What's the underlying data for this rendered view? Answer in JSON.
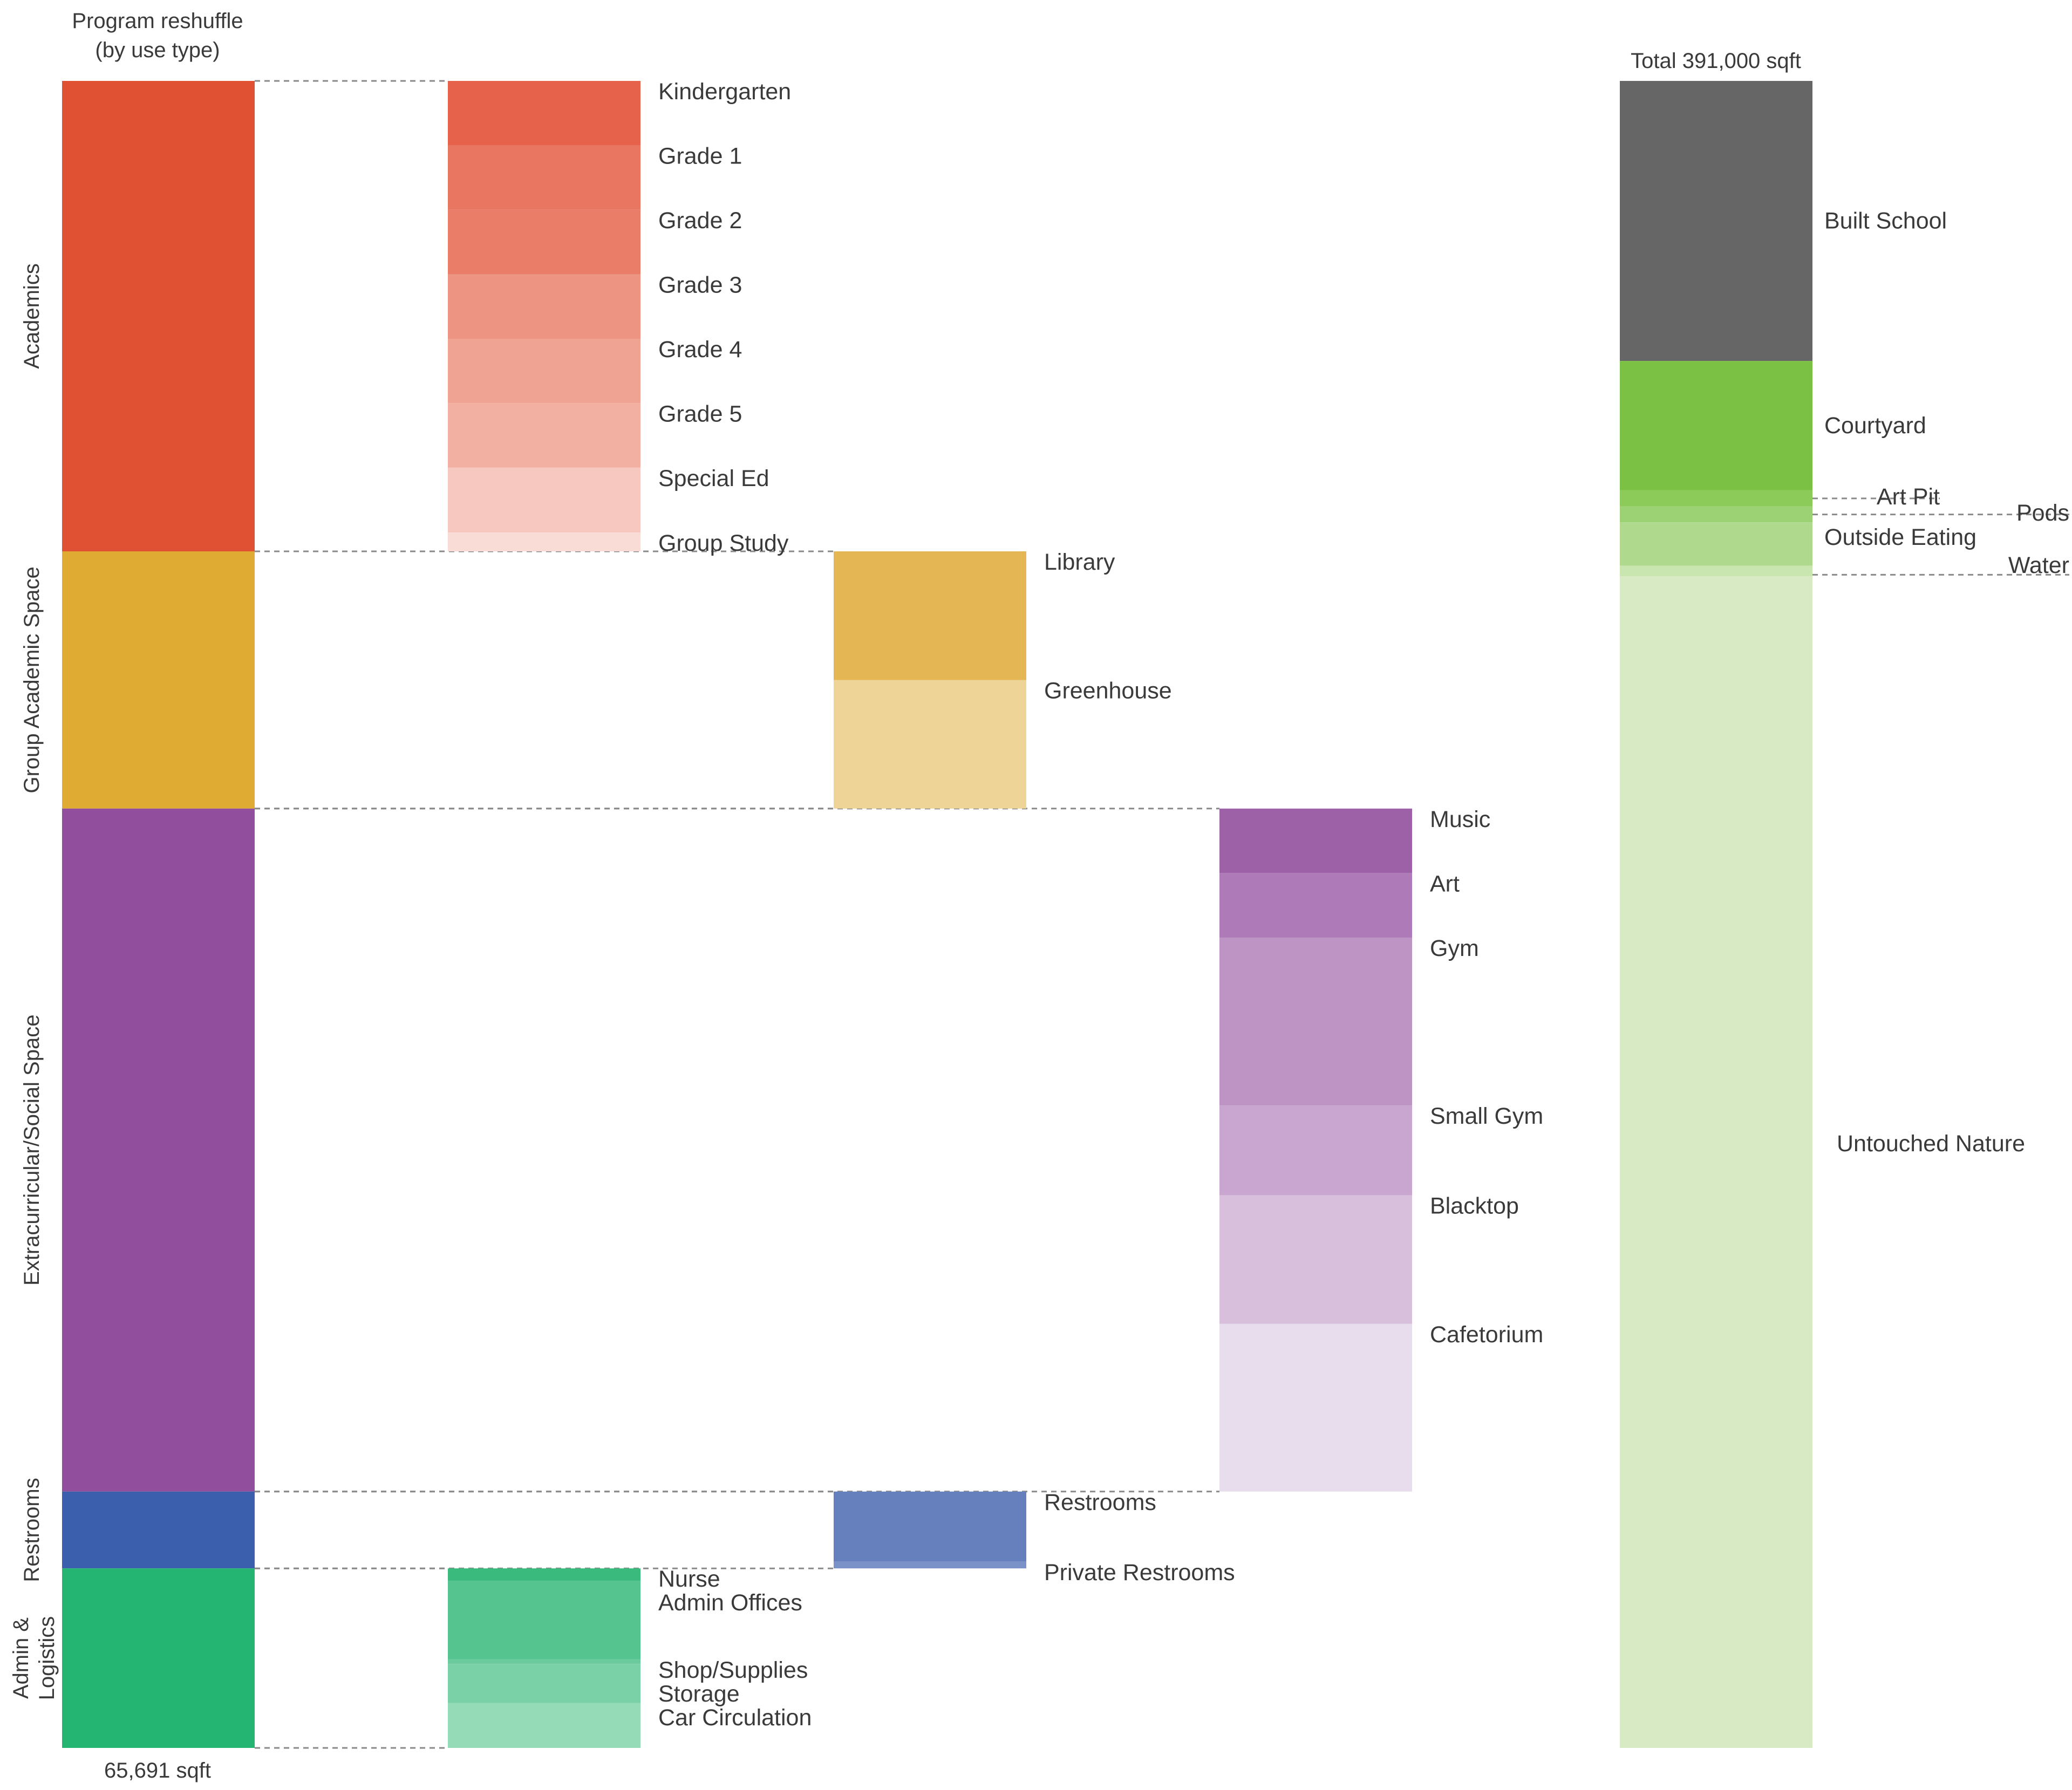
{
  "chart_data": {
    "type": "bar",
    "title": "Program reshuffle",
    "subtitle": "(by use type)",
    "program_total_label": "65,691 sqft",
    "site_total_label": "Total 391,000 sqft",
    "program_groups": [
      {
        "name": "Academics",
        "label_lines": [
          "Academics"
        ],
        "color": "#e05033",
        "start": 0,
        "end": 0.2822
      },
      {
        "name": "Group Academic Space",
        "label_lines": [
          "Group Academic Space"
        ],
        "color": "#e0ab32",
        "start": 0.2822,
        "end": 0.4365
      },
      {
        "name": "Extracurricular/Social Space",
        "label_lines": [
          "Extracurricular/Social Space"
        ],
        "color": "#914e9c",
        "start": 0.4365,
        "end": 0.8462
      },
      {
        "name": "Restrooms",
        "label_lines": [
          "Restrooms"
        ],
        "color": "#3c5fad",
        "start": 0.8462,
        "end": 0.8923
      },
      {
        "name": "Admin & Logistics",
        "label_lines": [
          "Admin &",
          "Logistics"
        ],
        "color": "#25b572",
        "start": 0.8923,
        "end": 1.0
      }
    ],
    "breakdowns": [
      {
        "group": "Academics",
        "column": 1,
        "items": [
          {
            "label": "Kindergarten",
            "start": 0.0,
            "end": 0.0387,
            "color": "#e6624a"
          },
          {
            "label": "Grade 1",
            "start": 0.0387,
            "end": 0.0773,
            "color": "#e97660"
          },
          {
            "label": "Grade 2",
            "start": 0.0773,
            "end": 0.116,
            "color": "#ea7d68"
          },
          {
            "label": "Grade 3",
            "start": 0.116,
            "end": 0.1547,
            "color": "#ed9482"
          },
          {
            "label": "Grade 4",
            "start": 0.1547,
            "end": 0.1933,
            "color": "#efa393"
          },
          {
            "label": "Grade 5",
            "start": 0.1933,
            "end": 0.232,
            "color": "#f2b0a3"
          },
          {
            "label": "Special Ed",
            "start": 0.232,
            "end": 0.2709,
            "color": "#f6c8c0"
          },
          {
            "label": "Group Study",
            "start": 0.2709,
            "end": 0.2822,
            "color": "#fadcd7"
          }
        ]
      },
      {
        "group": "Group Academic Space",
        "column": 2,
        "items": [
          {
            "label": "Library",
            "start": 0.2822,
            "end": 0.3594,
            "color": "#e5b754"
          },
          {
            "label": "Greenhouse",
            "start": 0.3594,
            "end": 0.4365,
            "color": "#eed597"
          }
        ]
      },
      {
        "group": "Extracurricular/Social Space",
        "column": 3,
        "items": [
          {
            "label": "Music",
            "start": 0.4365,
            "end": 0.4752,
            "color": "#9d61a8"
          },
          {
            "label": "Art",
            "start": 0.4752,
            "end": 0.5139,
            "color": "#ae7ab8"
          },
          {
            "label": "Gym",
            "start": 0.5139,
            "end": 0.6146,
            "color": "#be94c4"
          },
          {
            "label": "Small Gym",
            "start": 0.6146,
            "end": 0.6685,
            "color": "#c8a6cf"
          },
          {
            "label": "Blacktop",
            "start": 0.6685,
            "end": 0.7456,
            "color": "#d8bfdc"
          },
          {
            "label": "Cafetorium",
            "start": 0.7456,
            "end": 0.8462,
            "color": "#e8ddec"
          }
        ]
      },
      {
        "group": "Restrooms",
        "column": 2,
        "items": [
          {
            "label": "Restrooms",
            "start": 0.8462,
            "end": 0.8883,
            "color": "#6680be"
          },
          {
            "label": "Private Restrooms",
            "start": 0.8883,
            "end": 0.8923,
            "color": "#7a92c8"
          }
        ]
      },
      {
        "group": "Admin & Logistics",
        "column": 1,
        "items": [
          {
            "label": "Nurse",
            "start": 0.8923,
            "end": 0.8998,
            "color": "#3abb7d"
          },
          {
            "label": "Admin Offices",
            "start": 0.8998,
            "end": 0.9469,
            "color": "#55c48f"
          },
          {
            "label": "Shop/Supplies",
            "start": 0.9469,
            "end": 0.9496,
            "color": "#6ccb9c"
          },
          {
            "label": "Storage",
            "start": 0.9496,
            "end": 0.9731,
            "color": "#7ad0a7"
          },
          {
            "label": "Car Circulation",
            "start": 0.9731,
            "end": 1.0,
            "color": "#95dbb8"
          }
        ]
      }
    ],
    "site": [
      {
        "label": "Built School",
        "start": 0.0,
        "end": 0.168,
        "color": "#666666"
      },
      {
        "label": "Courtyard",
        "start": 0.168,
        "end": 0.2456,
        "color": "#7bc143"
      },
      {
        "label": "Art Pit",
        "start": 0.2456,
        "end": 0.2552,
        "color": "#8cca59"
      },
      {
        "label": "Pods",
        "start": 0.2552,
        "end": 0.2648,
        "color": "#9dd274"
      },
      {
        "label": "Outside Eating",
        "start": 0.2648,
        "end": 0.2908,
        "color": "#afda8e"
      },
      {
        "label": "Water",
        "start": 0.2908,
        "end": 0.2972,
        "color": "#c9e6b0"
      },
      {
        "label": "Untouched Nature",
        "start": 0.2972,
        "end": 1.0,
        "color": "#d7eac4"
      }
    ]
  }
}
